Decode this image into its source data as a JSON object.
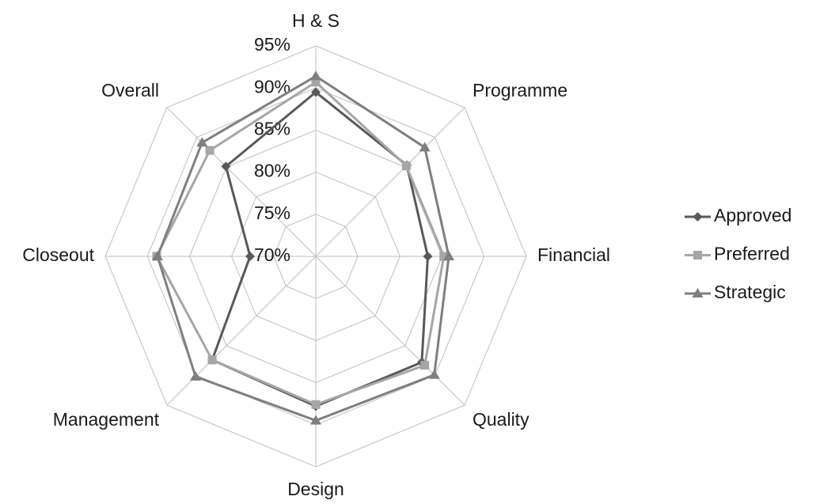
{
  "chart_data": {
    "type": "radar",
    "categories": [
      "H & S",
      "Programme",
      "Financial",
      "Quality",
      "Design",
      "Management",
      "Closeout",
      "Overall"
    ],
    "ylim": [
      70,
      95
    ],
    "yticks": [
      {
        "value": 70,
        "label": "70%"
      },
      {
        "value": 75,
        "label": "75%"
      },
      {
        "value": 80,
        "label": "80%"
      },
      {
        "value": 85,
        "label": "85%"
      },
      {
        "value": 90,
        "label": "90%"
      },
      {
        "value": 95,
        "label": "95%"
      }
    ],
    "grid": true,
    "legend": "right",
    "series": [
      {
        "name": "Approved",
        "color": "#595959",
        "marker": "diamond",
        "values": [
          89.5,
          85.3,
          83.3,
          87.8,
          87.8,
          87.4,
          77.8,
          85.1
        ]
      },
      {
        "name": "Preferred",
        "color": "#a6a6a6",
        "marker": "square",
        "values": [
          90.7,
          85.2,
          85.2,
          88.3,
          87.6,
          87.4,
          88.9,
          87.8
        ]
      },
      {
        "name": "Strategic",
        "color": "#7f7f7f",
        "marker": "triangle",
        "values": [
          91.4,
          88.3,
          85.8,
          89.9,
          89.5,
          90.2,
          88.8,
          89.1
        ]
      }
    ]
  }
}
